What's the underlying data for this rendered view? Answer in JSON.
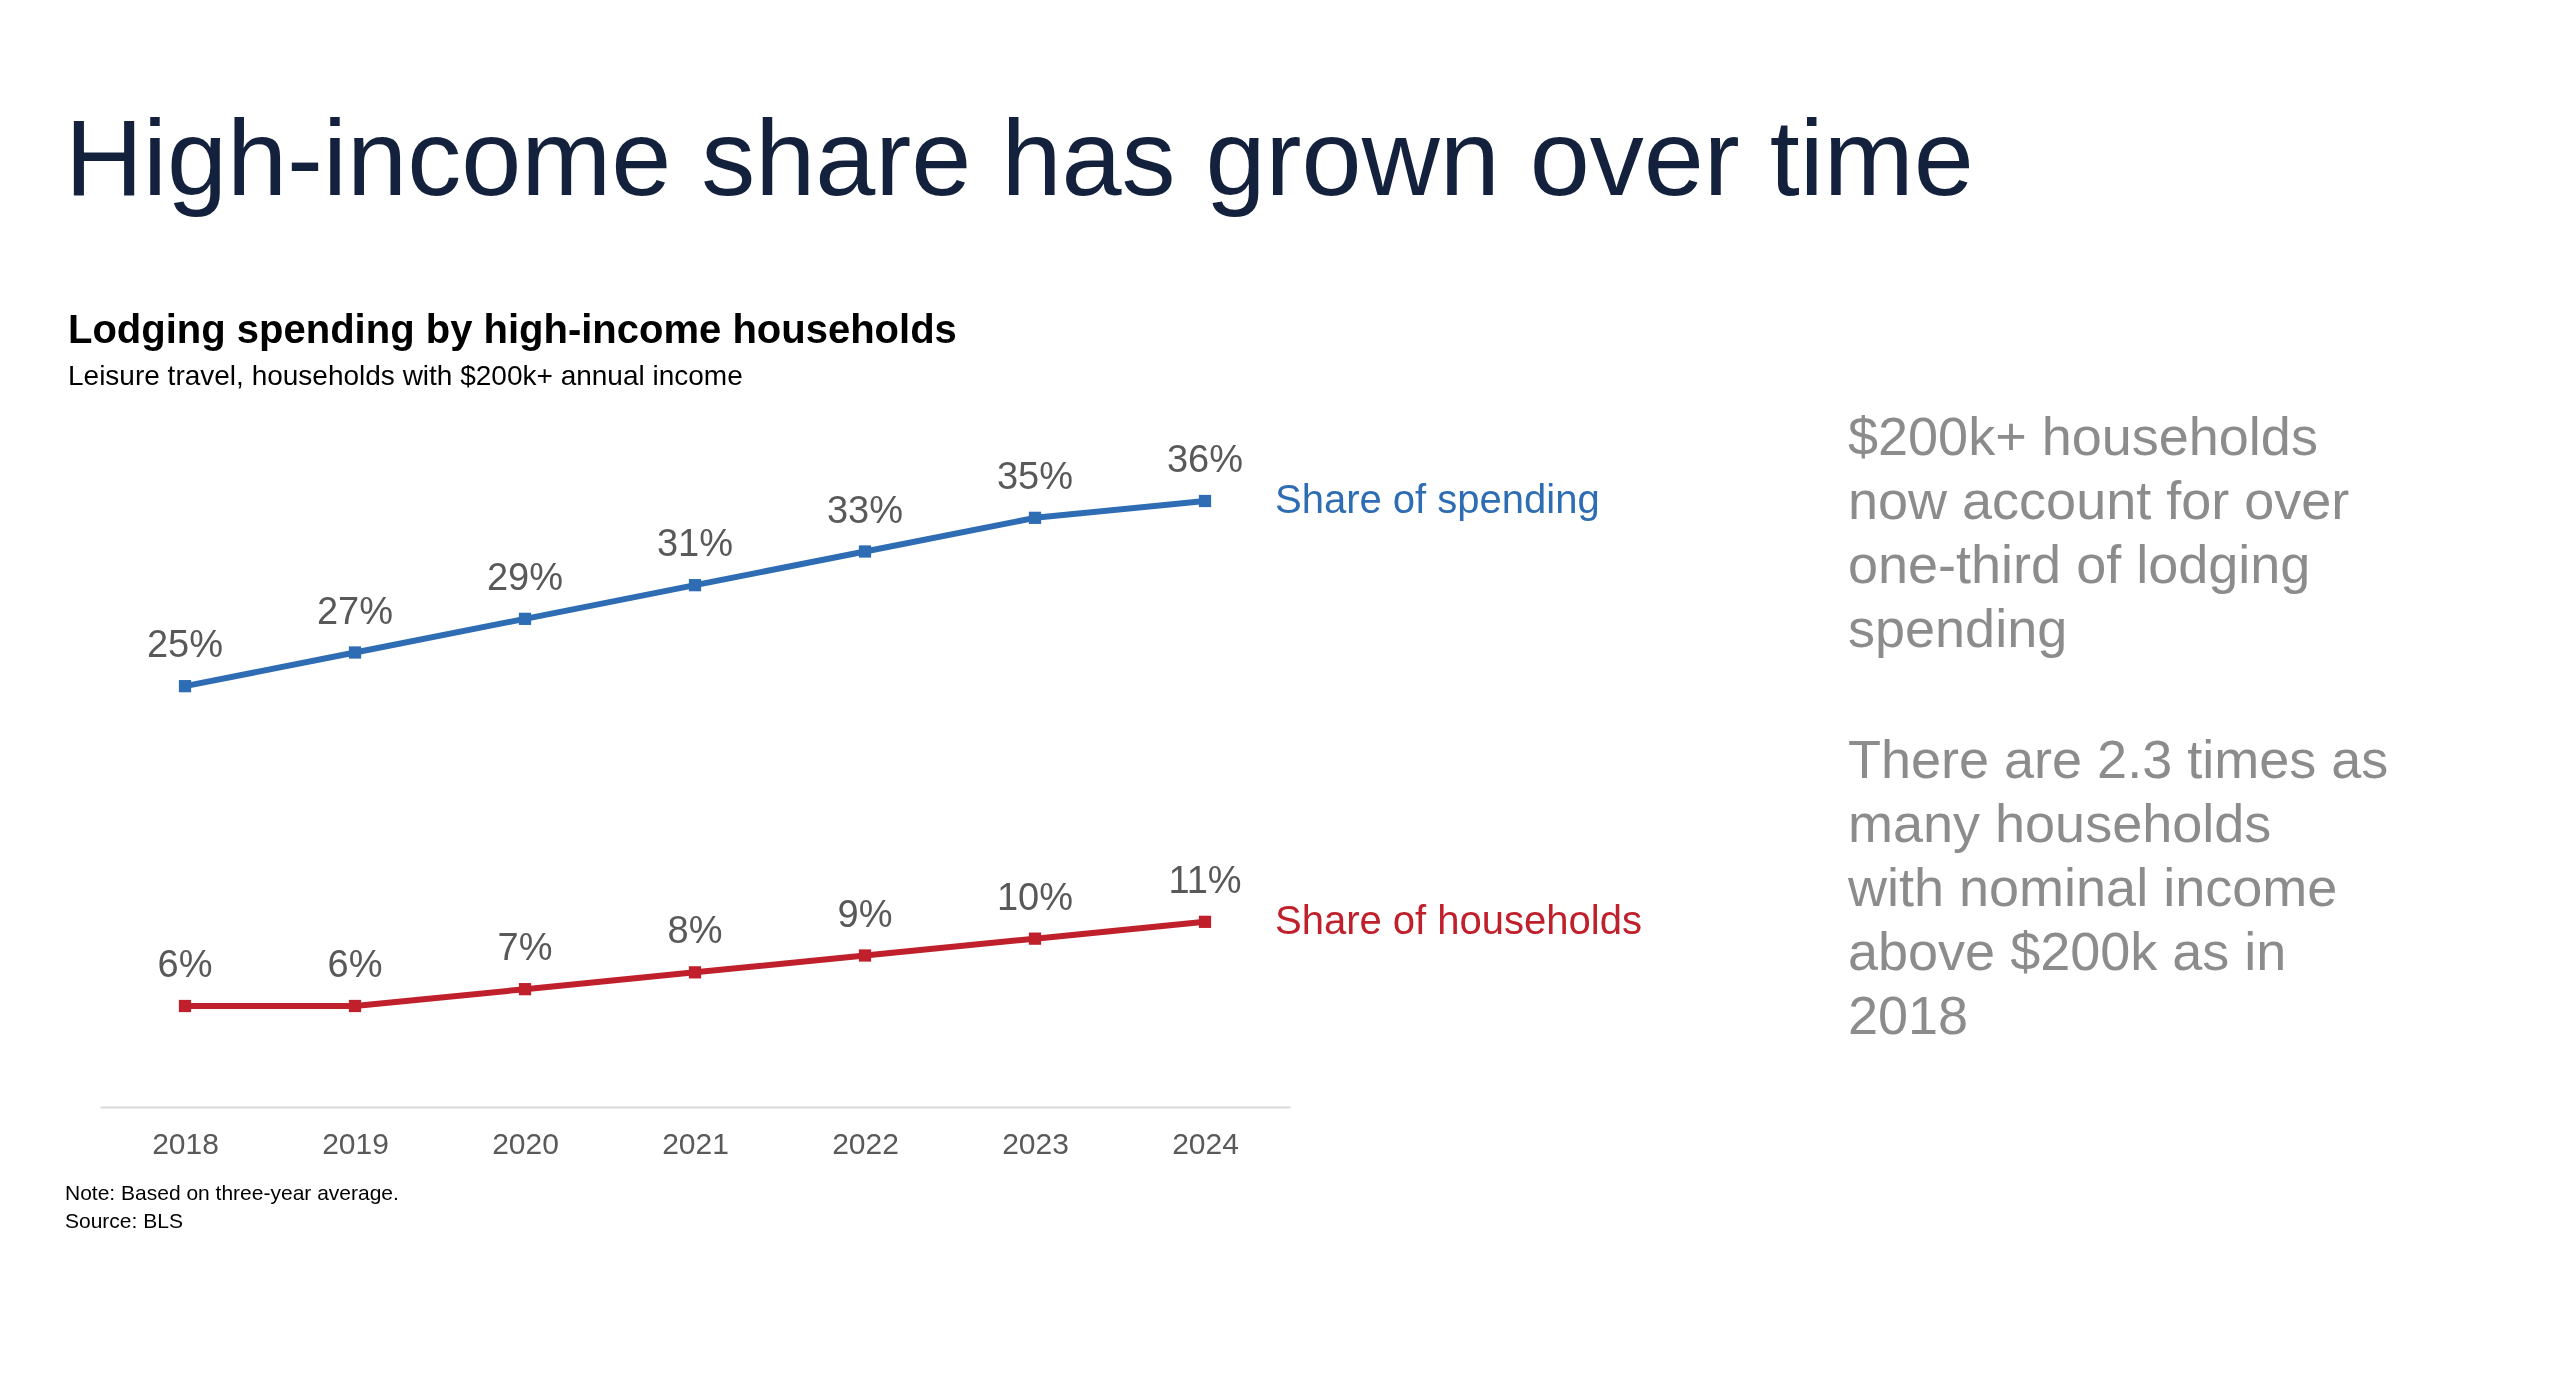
{
  "chart_data": {
    "type": "line",
    "title": "High-income share has grown over time",
    "subtitle": "Lodging spending by high-income households",
    "categories": [
      "2018",
      "2019",
      "2020",
      "2021",
      "2022",
      "2023",
      "2024"
    ],
    "series": [
      {
        "name": "Share of spending",
        "color": "#2e6db4",
        "values": [
          25,
          27,
          29,
          31,
          33,
          35,
          36
        ],
        "value_labels": [
          "25%",
          "27%",
          "29%",
          "31%",
          "33%",
          "35%",
          "36%"
        ]
      },
      {
        "name": "Share of households",
        "color": "#c0202b",
        "values": [
          6,
          6,
          7,
          8,
          9,
          10,
          11
        ],
        "value_labels": [
          "6%",
          "6%",
          "7%",
          "8%",
          "9%",
          "10%",
          "11%"
        ]
      }
    ],
    "marker": "square",
    "line_style": "solid",
    "annotations": [
      "Leisure travel, households with $200k+ annual income",
      "$200k+ households\nnow account for over\none-third of lodging\nspending",
      "There are 2.3 times as\nmany households\nwith nominal income\nabove $200k as in\n2018",
      "Note: Based on three-year average.",
      "Source: BLS"
    ]
  }
}
